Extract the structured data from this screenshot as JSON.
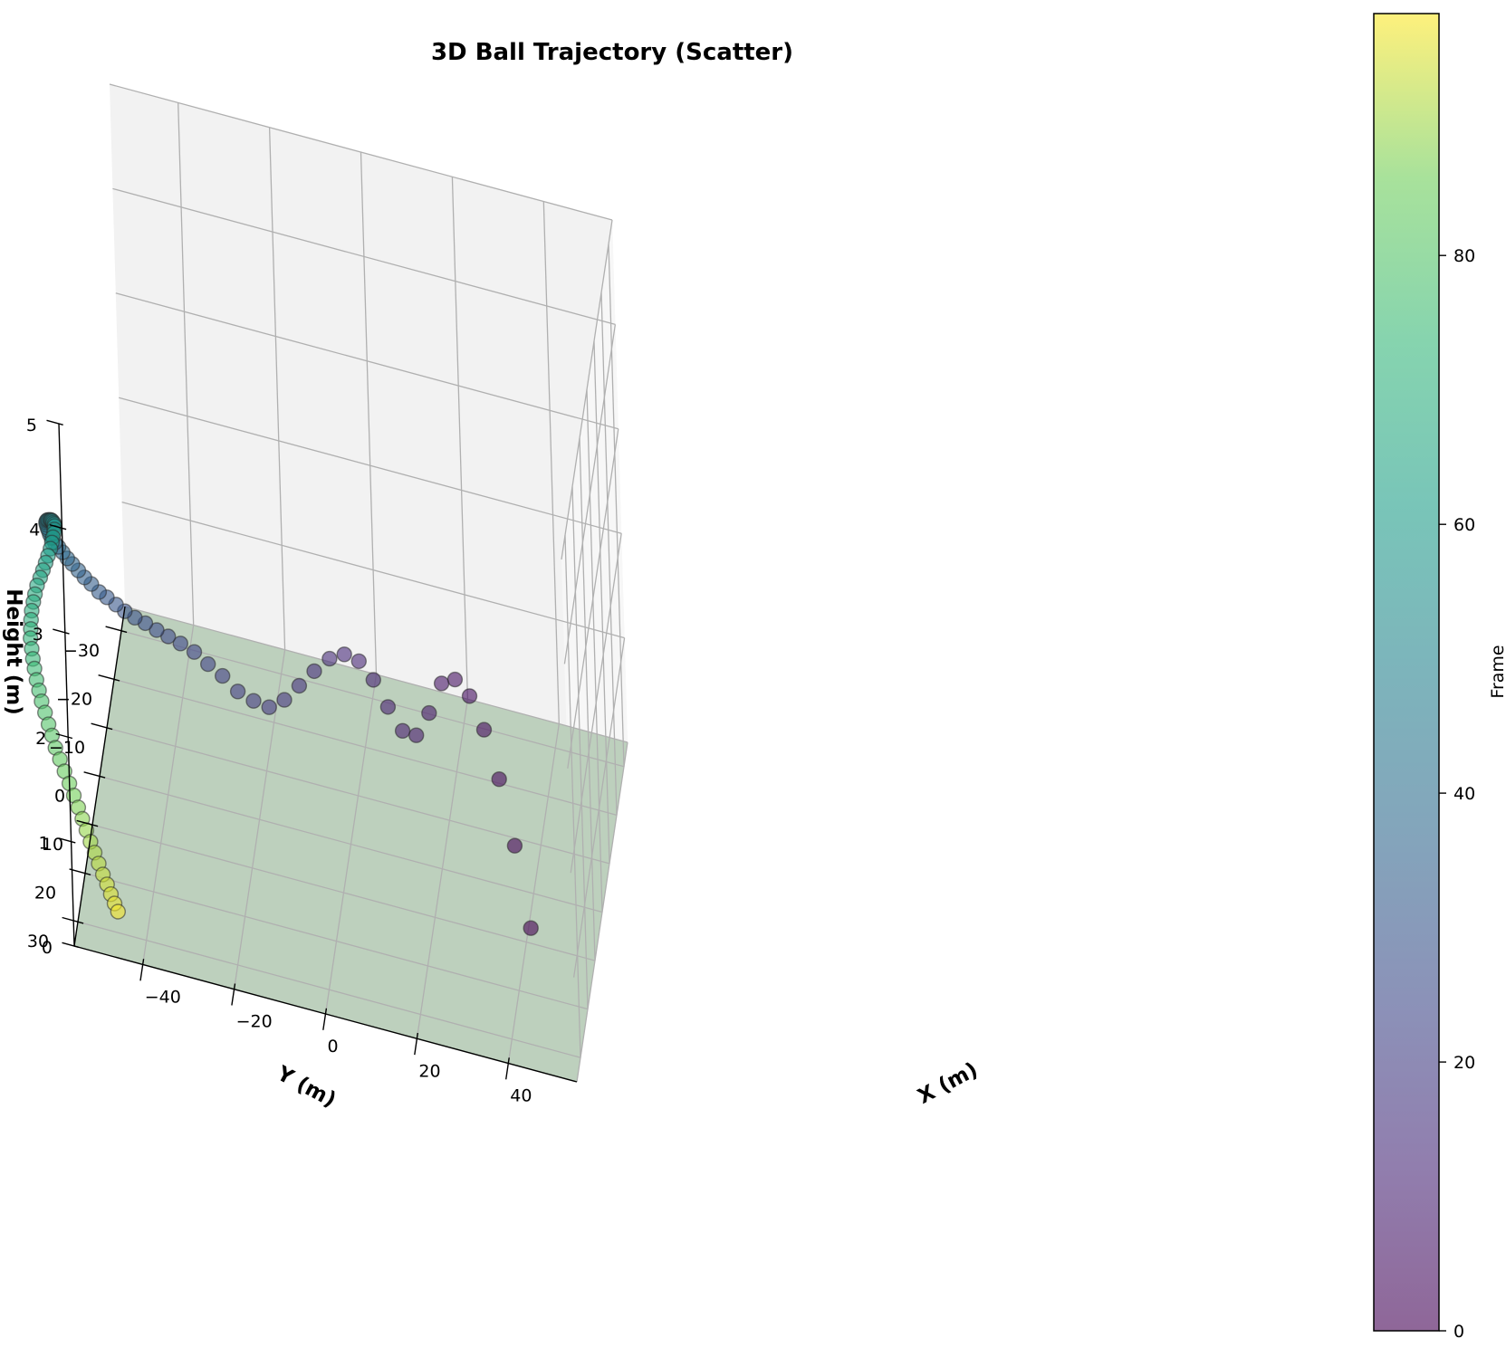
{
  "chart_data": {
    "type": "scatter",
    "projection": "3d",
    "title": "3D Ball Trajectory (Scatter)",
    "xlabel": "X (m)",
    "ylabel": "Y (m)",
    "zlabel": "Height (m)",
    "colorbar_label": "Frame",
    "colormap": "viridis",
    "point_alpha": 0.6,
    "ground_plane_color": "#8fb58f",
    "grid": true,
    "xlim": [
      -55,
      55
    ],
    "ylim": [
      -35,
      35
    ],
    "zlim": [
      0,
      5
    ],
    "x_ticks": [
      -40,
      -20,
      0,
      20,
      40
    ],
    "x_tick_labels": [
      "−40",
      "−20",
      "0",
      "20",
      "40"
    ],
    "y_ticks": [
      -30,
      -20,
      -10,
      0,
      10,
      20,
      30
    ],
    "y_tick_labels": [
      "−30",
      "−20",
      "−10",
      "0",
      "10",
      "20",
      "30"
    ],
    "z_ticks": [
      0,
      1,
      2,
      3,
      4,
      5
    ],
    "z_tick_labels": [
      "0",
      "1",
      "2",
      "3",
      "4",
      "5"
    ],
    "colorbar_ticks": [
      0,
      20,
      40,
      60,
      80
    ],
    "colorbar_range": [
      0,
      98
    ],
    "frame": [
      0,
      1,
      2,
      3,
      4,
      5,
      6,
      7,
      8,
      9,
      10,
      11,
      12,
      13,
      14,
      15,
      16,
      17,
      18,
      19,
      20,
      21,
      22,
      23,
      24,
      25,
      26,
      27,
      28,
      29,
      30,
      31,
      32,
      33,
      34,
      35,
      36,
      37,
      38,
      39,
      40,
      41,
      42,
      43,
      44,
      45,
      46,
      47,
      48,
      49,
      50,
      51,
      52,
      53,
      54,
      55,
      56,
      57,
      58,
      59,
      60,
      61,
      62,
      63,
      64,
      65,
      66,
      67,
      68,
      69,
      70,
      71,
      72,
      73,
      74,
      75,
      76,
      77,
      78,
      79,
      80,
      81,
      82,
      83,
      84,
      85,
      86,
      87,
      88,
      89,
      90,
      91,
      92,
      93,
      94,
      95,
      96,
      97
    ],
    "x": [
      40.5,
      37.1,
      33.7,
      30.3,
      26.9,
      23.4,
      20.0,
      16.6,
      13.2,
      9.8,
      6.3,
      2.9,
      -0.5,
      -3.9,
      -7.3,
      -10.8,
      -14.2,
      -17.6,
      -21.0,
      -24.4,
      -27.8,
      -31.0,
      -34.0,
      -36.8,
      -39.6,
      -42.1,
      -44.4,
      -46.7,
      -48.8,
      -50.8,
      -52.5,
      -54.3,
      -55.8,
      -57.3,
      -58.6,
      -59.7,
      -60.8,
      -61.7,
      -62.5,
      -63.2,
      -63.8,
      -64.3,
      -64.5,
      -64.6,
      -64.6,
      -64.6,
      -64.5,
      -64.2,
      -63.8,
      -63.4,
      -62.9,
      -62.5,
      -62.2,
      -61.8,
      -61.5,
      -61.1,
      -60.9,
      -60.8,
      -60.7,
      -60.8,
      -60.9,
      -61.1,
      -61.5,
      -61.9,
      -62.4,
      -62.9,
      -63.5,
      -63.9,
      -64.2,
      -64.5,
      -64.6,
      -64.6,
      -64.6,
      -64.3,
      -64.0,
      -63.6,
      -63.1,
      -62.5,
      -61.9,
      -61.1,
      -60.3,
      -59.5,
      -58.7,
      -57.7,
      -56.7,
      -55.6,
      -54.6,
      -53.6,
      -52.7,
      -51.8,
      -50.9,
      -50.0,
      -49.1,
      -48.2,
      -47.3,
      -46.5,
      -45.7,
      -45.0
    ],
    "y": [
      7.0,
      5.1,
      3.0,
      1.0,
      -1.2,
      -3.3,
      -5.5,
      -7.8,
      -10.1,
      -12.3,
      -14.4,
      -16.3,
      -18.0,
      -19.2,
      -19.8,
      -20.0,
      -20.0,
      -20.1,
      -20.1,
      -20.1,
      -20.1,
      -19.7,
      -19.0,
      -18.2,
      -17.3,
      -16.4,
      -15.4,
      -14.5,
      -13.6,
      -12.7,
      -11.7,
      -10.8,
      -9.8,
      -8.9,
      -8.0,
      -7.0,
      -6.1,
      -5.1,
      -4.2,
      -3.2,
      -2.2,
      -1.3,
      -0.3,
      0.6,
      1.6,
      2.5,
      3.5,
      4.4,
      5.4,
      6.4,
      7.3,
      8.3,
      9.2,
      10.1,
      11.0,
      11.8,
      12.6,
      13.5,
      14.4,
      15.3,
      16.2,
      17.1,
      18.0,
      18.9,
      19.7,
      20.5,
      21.2,
      21.8,
      22.4,
      23.0,
      23.6,
      24.2,
      24.8,
      25.4,
      25.9,
      26.5,
      27.2,
      27.7,
      28.3,
      28.9,
      29.4,
      30.0,
      30.6,
      31.0,
      31.5,
      32.0,
      32.5,
      33.0,
      33.4,
      33.8,
      34.2,
      34.5,
      34.8,
      35.1,
      35.4,
      35.5,
      35.7,
      35.7
    ],
    "z": [
      0.0,
      0.66,
      1.16,
      1.5,
      1.68,
      1.7,
      1.52,
      1.09,
      0.73,
      0.63,
      0.72,
      0.85,
      0.91,
      0.88,
      0.77,
      0.6,
      0.42,
      0.24,
      0.13,
      0.15,
      0.2,
      0.33,
      0.44,
      0.56,
      0.65,
      0.73,
      0.81,
      0.89,
      0.96,
      1.04,
      1.13,
      1.22,
      1.3,
      1.4,
      1.49,
      1.59,
      1.68,
      1.77,
      1.86,
      1.95,
      2.03,
      2.11,
      2.19,
      2.27,
      2.34,
      2.41,
      2.48,
      2.54,
      2.6,
      2.65,
      2.7,
      2.75,
      2.79,
      2.83,
      2.86,
      2.89,
      2.91,
      2.92,
      2.93,
      2.93,
      2.92,
      2.9,
      2.87,
      2.84,
      2.8,
      2.76,
      2.71,
      2.65,
      2.6,
      2.54,
      2.48,
      2.42,
      2.36,
      2.29,
      2.22,
      2.16,
      2.09,
      2.02,
      1.95,
      1.88,
      1.8,
      1.73,
      1.65,
      1.57,
      1.49,
      1.41,
      1.33,
      1.25,
      1.17,
      1.09,
      1.01,
      0.93,
      0.85,
      0.77,
      0.7,
      0.62,
      0.55,
      0.48
    ]
  }
}
